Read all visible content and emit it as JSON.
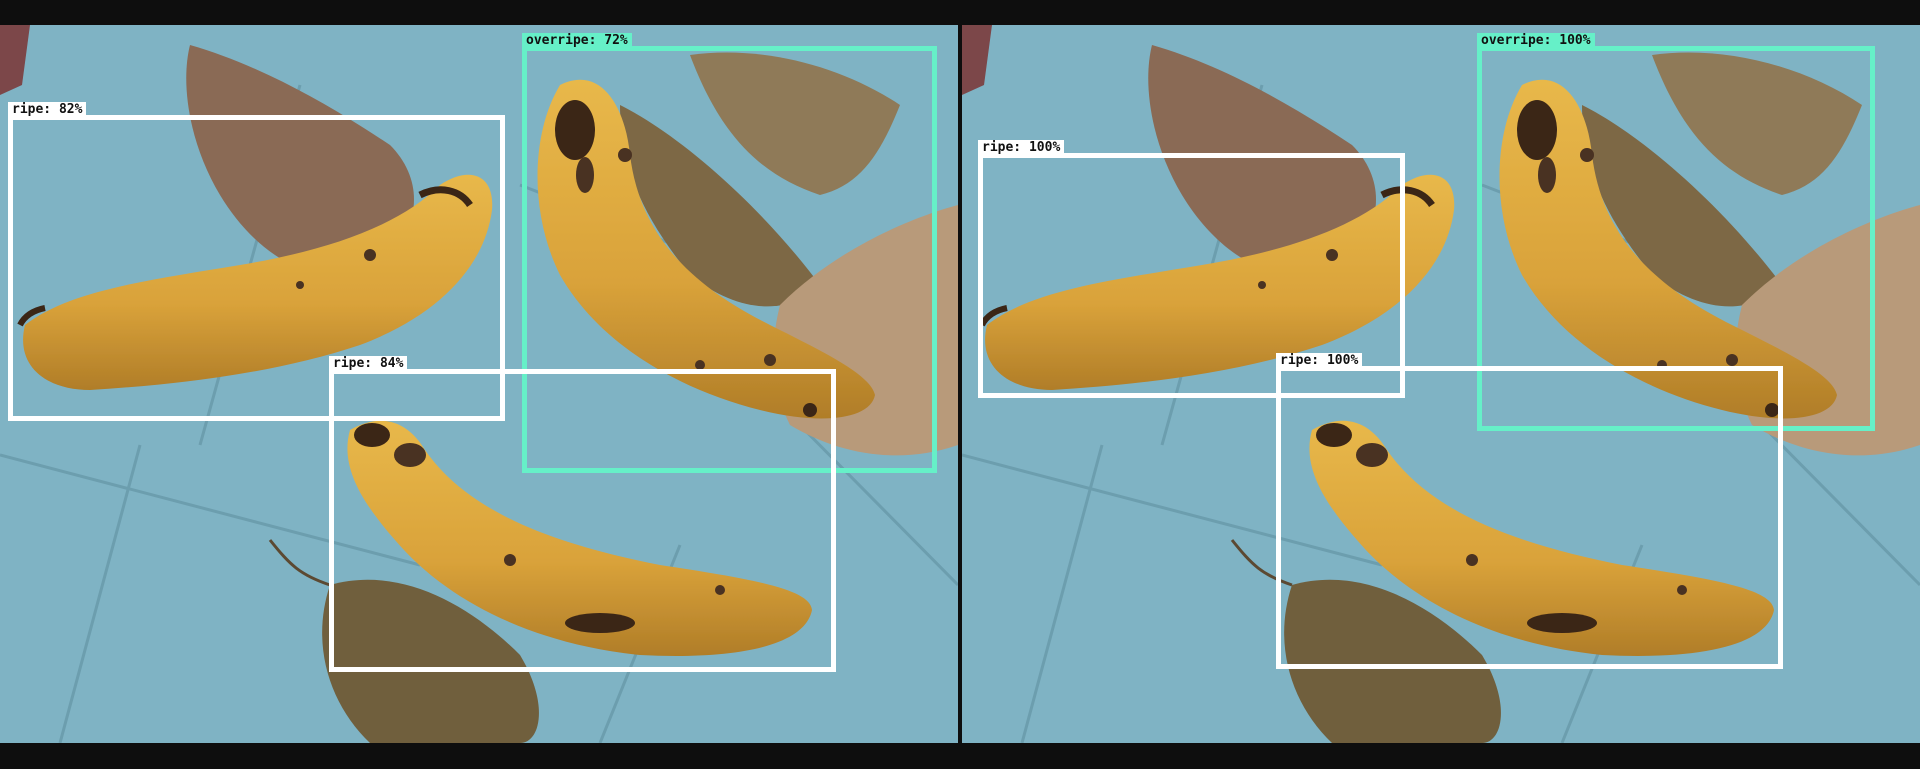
{
  "panels": [
    {
      "detections": [
        {
          "class": "ripe",
          "score": "82%",
          "label": "ripe: 82%"
        },
        {
          "class": "overripe",
          "score": "72%",
          "label": "overripe: 72%"
        },
        {
          "class": "ripe",
          "score": "84%",
          "label": "ripe: 84%"
        }
      ]
    },
    {
      "detections": [
        {
          "class": "ripe",
          "score": "100%",
          "label": "ripe: 100%"
        },
        {
          "class": "overripe",
          "score": "100%",
          "label": "overripe: 100%"
        },
        {
          "class": "ripe",
          "score": "100%",
          "label": "ripe: 100%"
        }
      ]
    }
  ],
  "colors": {
    "ripe_box": "#ffffff",
    "overripe_box": "#66f0c8",
    "letterbox": "#0e0e0e",
    "floor": "#7fb3c4"
  }
}
